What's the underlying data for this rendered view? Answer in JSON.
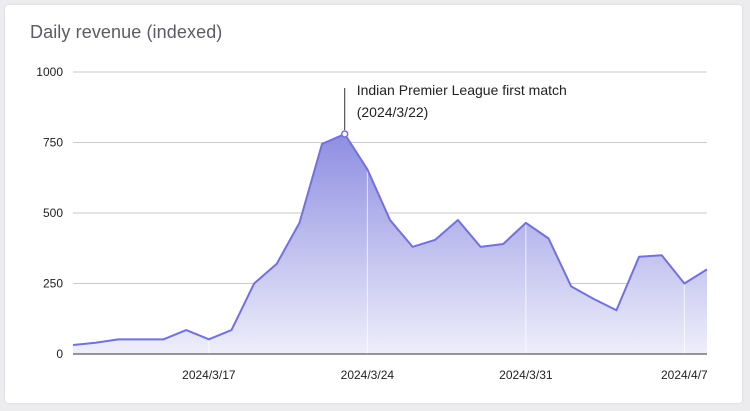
{
  "chart_data": {
    "type": "area",
    "title": "Daily revenue (indexed)",
    "xlabel": "",
    "ylabel": "",
    "ylim": [
      0,
      1000
    ],
    "yticks": [
      0,
      250,
      500,
      750,
      1000
    ],
    "xticks": [
      {
        "label": "2024/3/17",
        "index": 6
      },
      {
        "label": "2024/3/24",
        "index": 13
      },
      {
        "label": "2024/3/31",
        "index": 20
      },
      {
        "label": "2024/4/7",
        "index": 27
      }
    ],
    "grid": true,
    "series": [
      {
        "dates": [
          "2024/3/11",
          "2024/3/12",
          "2024/3/13",
          "2024/3/14",
          "2024/3/15",
          "2024/3/16",
          "2024/3/17",
          "2024/3/18",
          "2024/3/19",
          "2024/3/20",
          "2024/3/21",
          "2024/3/22",
          "2024/3/23",
          "2024/3/24",
          "2024/3/25",
          "2024/3/26",
          "2024/3/27",
          "2024/3/28",
          "2024/3/29",
          "2024/3/30",
          "2024/3/31",
          "2024/4/1",
          "2024/4/2",
          "2024/4/3",
          "2024/4/4",
          "2024/4/5",
          "2024/4/6",
          "2024/4/7",
          "2024/4/8"
        ],
        "values": [
          32,
          40,
          52,
          52,
          52,
          85,
          52,
          85,
          250,
          320,
          465,
          745,
          780,
          655,
          475,
          380,
          405,
          475,
          380,
          390,
          465,
          410,
          240,
          195,
          155,
          345,
          350,
          250,
          300
        ]
      }
    ],
    "annotation": {
      "text_line1": "Indian Premier League first match",
      "text_line2": "(2024/3/22)",
      "index": 12
    },
    "colors": {
      "line": "#7272d9",
      "fill_top": "#8e8ee2",
      "fill_bottom": "#eeeefb",
      "grid": "#c9c9cf"
    }
  }
}
